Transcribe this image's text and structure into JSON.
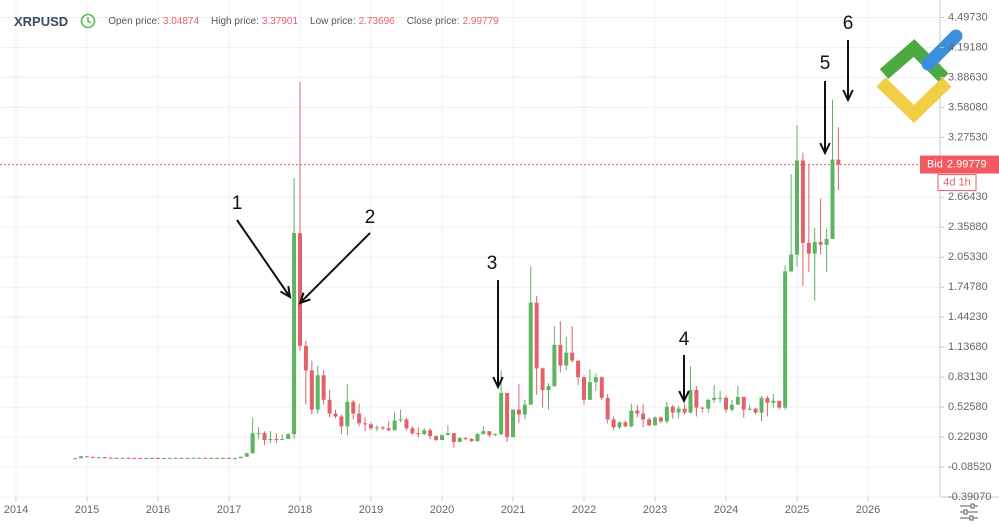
{
  "header": {
    "symbol": "XRPUSD",
    "fields": [
      "Open price:",
      "High price:",
      "Low price:",
      "Close price:"
    ]
  },
  "chart_data": {
    "type": "candlestick",
    "x": [
      2014.833,
      2014.917,
      2015.0,
      2015.083,
      2015.167,
      2015.25,
      2015.333,
      2015.417,
      2015.5,
      2015.583,
      2015.667,
      2015.75,
      2015.833,
      2015.917,
      2016.0,
      2016.083,
      2016.167,
      2016.25,
      2016.333,
      2016.417,
      2016.5,
      2016.583,
      2016.667,
      2016.75,
      2016.833,
      2016.917,
      2017.0,
      2017.083,
      2017.167,
      2017.25,
      2017.333,
      2017.417,
      2017.5,
      2017.583,
      2017.667,
      2017.75,
      2017.833,
      2017.917,
      2018.0,
      2018.083,
      2018.167,
      2018.25,
      2018.333,
      2018.417,
      2018.5,
      2018.583,
      2018.667,
      2018.75,
      2018.833,
      2018.917,
      2019.0,
      2019.083,
      2019.167,
      2019.25,
      2019.333,
      2019.417,
      2019.5,
      2019.583,
      2019.667,
      2019.75,
      2019.833,
      2019.917,
      2020.0,
      2020.083,
      2020.167,
      2020.25,
      2020.333,
      2020.417,
      2020.5,
      2020.583,
      2020.667,
      2020.75,
      2020.833,
      2020.917,
      2021.0,
      2021.083,
      2021.167,
      2021.25,
      2021.333,
      2021.417,
      2021.5,
      2021.583,
      2021.667,
      2021.75,
      2021.833,
      2021.917,
      2022.0,
      2022.083,
      2022.167,
      2022.25,
      2022.333,
      2022.417,
      2022.5,
      2022.583,
      2022.667,
      2022.75,
      2022.833,
      2022.917,
      2023.0,
      2023.083,
      2023.167,
      2023.25,
      2023.333,
      2023.417,
      2023.5,
      2023.583,
      2023.667,
      2023.75,
      2023.833,
      2023.917,
      2024.0,
      2024.083,
      2024.167,
      2024.25,
      2024.333,
      2024.417,
      2024.5,
      2024.583,
      2024.667,
      2024.75,
      2024.833,
      2024.917,
      2025.0,
      2025.083,
      2025.167,
      2025.25,
      2025.333,
      2025.417,
      2025.5,
      2025.583
    ],
    "open": [
      0.005,
      0.005,
      0.024,
      0.018,
      0.013,
      0.015,
      0.011,
      0.009,
      0.008,
      0.009,
      0.008,
      0.007,
      0.006,
      0.006,
      0.007,
      0.006,
      0.006,
      0.006,
      0.008,
      0.006,
      0.007,
      0.009,
      0.009,
      0.006,
      0.007,
      0.007,
      0.008,
      0.006,
      0.006,
      0.02,
      0.055,
      0.26,
      0.26,
      0.19,
      0.2,
      0.19,
      0.2,
      0.25,
      2.3,
      1.15,
      0.9,
      0.5,
      0.85,
      0.6,
      0.46,
      0.43,
      0.33,
      0.58,
      0.46,
      0.36,
      0.35,
      0.31,
      0.32,
      0.31,
      0.29,
      0.39,
      0.4,
      0.31,
      0.26,
      0.25,
      0.29,
      0.23,
      0.19,
      0.24,
      0.26,
      0.17,
      0.21,
      0.2,
      0.18,
      0.25,
      0.28,
      0.24,
      0.25,
      0.67,
      0.22,
      0.5,
      0.45,
      0.55,
      1.59,
      0.92,
      0.7,
      0.74,
      1.16,
      0.95,
      1.08,
      1.0,
      0.83,
      0.6,
      0.78,
      0.83,
      0.62,
      0.4,
      0.32,
      0.37,
      0.33,
      0.49,
      0.46,
      0.4,
      0.34,
      0.42,
      0.38,
      0.53,
      0.47,
      0.51,
      0.47,
      0.7,
      0.52,
      0.51,
      0.6,
      0.62,
      0.62,
      0.5,
      0.55,
      0.63,
      0.5,
      0.51,
      0.47,
      0.62,
      0.57,
      0.59,
      0.52,
      1.91,
      2.08,
      3.04,
      2.2,
      2.09,
      2.21,
      2.18,
      2.24,
      3.04874
    ],
    "high": [
      0.009,
      0.028,
      0.028,
      0.022,
      0.019,
      0.019,
      0.015,
      0.013,
      0.013,
      0.013,
      0.012,
      0.011,
      0.01,
      0.011,
      0.011,
      0.01,
      0.01,
      0.012,
      0.012,
      0.011,
      0.013,
      0.013,
      0.013,
      0.011,
      0.011,
      0.012,
      0.012,
      0.01,
      0.02,
      0.06,
      0.42,
      0.32,
      0.28,
      0.28,
      0.26,
      0.25,
      0.26,
      2.86,
      3.84,
      1.2,
      1.0,
      0.95,
      0.9,
      0.7,
      0.5,
      0.45,
      0.76,
      0.6,
      0.56,
      0.42,
      0.37,
      0.34,
      0.33,
      0.38,
      0.48,
      0.5,
      0.42,
      0.33,
      0.32,
      0.31,
      0.31,
      0.24,
      0.25,
      0.34,
      0.26,
      0.22,
      0.22,
      0.21,
      0.26,
      0.33,
      0.28,
      0.26,
      0.9,
      0.67,
      0.5,
      0.76,
      0.6,
      1.96,
      1.66,
      0.93,
      0.77,
      1.35,
      1.4,
      1.24,
      1.35,
      1.0,
      0.85,
      0.91,
      0.87,
      0.84,
      0.66,
      0.43,
      0.38,
      0.39,
      0.56,
      0.55,
      0.56,
      0.42,
      0.43,
      0.43,
      0.58,
      0.55,
      0.54,
      0.56,
      0.94,
      0.74,
      0.53,
      0.61,
      0.75,
      0.69,
      0.64,
      0.6,
      0.74,
      0.63,
      0.55,
      0.52,
      0.64,
      0.64,
      0.66,
      0.59,
      1.97,
      2.9,
      3.4,
      3.12,
      3.0,
      2.35,
      2.65,
      2.34,
      3.66,
      3.37901
    ],
    "low": [
      0.003,
      0.003,
      0.016,
      0.011,
      0.011,
      0.009,
      0.007,
      0.006,
      0.006,
      0.006,
      0.005,
      0.004,
      0.004,
      0.004,
      0.004,
      0.004,
      0.004,
      0.004,
      0.004,
      0.004,
      0.005,
      0.007,
      0.004,
      0.004,
      0.005,
      0.005,
      0.004,
      0.004,
      0.006,
      0.02,
      0.05,
      0.2,
      0.14,
      0.16,
      0.16,
      0.19,
      0.2,
      0.2,
      1.1,
      0.55,
      0.45,
      0.46,
      0.55,
      0.42,
      0.41,
      0.25,
      0.24,
      0.4,
      0.33,
      0.28,
      0.29,
      0.28,
      0.29,
      0.28,
      0.29,
      0.37,
      0.29,
      0.24,
      0.22,
      0.24,
      0.2,
      0.18,
      0.19,
      0.24,
      0.11,
      0.17,
      0.19,
      0.17,
      0.17,
      0.25,
      0.22,
      0.23,
      0.24,
      0.17,
      0.22,
      0.36,
      0.4,
      0.55,
      0.65,
      0.52,
      0.5,
      0.73,
      0.88,
      0.9,
      0.98,
      0.75,
      0.55,
      0.6,
      0.69,
      0.6,
      0.36,
      0.29,
      0.3,
      0.32,
      0.32,
      0.42,
      0.32,
      0.33,
      0.34,
      0.36,
      0.36,
      0.41,
      0.41,
      0.45,
      0.46,
      0.43,
      0.47,
      0.47,
      0.57,
      0.57,
      0.47,
      0.48,
      0.55,
      0.42,
      0.49,
      0.45,
      0.38,
      0.43,
      0.52,
      0.5,
      0.5,
      1.9,
      1.96,
      1.76,
      1.9,
      1.61,
      2.08,
      1.9,
      2.24,
      2.73696
    ],
    "close": [
      0.005,
      0.024,
      0.018,
      0.013,
      0.015,
      0.011,
      0.009,
      0.008,
      0.009,
      0.008,
      0.007,
      0.006,
      0.006,
      0.007,
      0.006,
      0.006,
      0.006,
      0.008,
      0.006,
      0.007,
      0.009,
      0.009,
      0.006,
      0.007,
      0.007,
      0.008,
      0.006,
      0.006,
      0.02,
      0.055,
      0.26,
      0.26,
      0.19,
      0.2,
      0.19,
      0.2,
      0.25,
      2.3,
      1.15,
      0.9,
      0.5,
      0.85,
      0.6,
      0.46,
      0.43,
      0.33,
      0.58,
      0.46,
      0.36,
      0.35,
      0.31,
      0.32,
      0.31,
      0.29,
      0.39,
      0.4,
      0.31,
      0.26,
      0.25,
      0.29,
      0.23,
      0.19,
      0.24,
      0.26,
      0.17,
      0.21,
      0.2,
      0.18,
      0.25,
      0.28,
      0.24,
      0.25,
      0.67,
      0.22,
      0.5,
      0.45,
      0.55,
      1.59,
      0.92,
      0.7,
      0.74,
      1.16,
      0.95,
      1.08,
      1.0,
      0.83,
      0.6,
      0.78,
      0.83,
      0.62,
      0.4,
      0.32,
      0.37,
      0.33,
      0.49,
      0.46,
      0.4,
      0.34,
      0.42,
      0.38,
      0.53,
      0.47,
      0.51,
      0.47,
      0.7,
      0.52,
      0.51,
      0.6,
      0.62,
      0.62,
      0.5,
      0.55,
      0.63,
      0.5,
      0.51,
      0.47,
      0.62,
      0.57,
      0.59,
      0.52,
      1.91,
      2.08,
      3.04,
      2.2,
      2.09,
      2.21,
      2.18,
      2.24,
      3.04874,
      2.99779
    ],
    "up_color": "#5db461",
    "down_color": "#e3616a",
    "xlim": [
      2013.775,
      2027.014
    ],
    "xticks": [
      2014,
      2015,
      2016,
      2017,
      2018,
      2019,
      2020,
      2021,
      2022,
      2023,
      2024,
      2025,
      2026
    ],
    "ylim": [
      -0.3907,
      4.6755
    ],
    "yticks": [
      {
        "value": 4.4973,
        "label": "4.49730"
      },
      {
        "value": 4.1918,
        "label": "4.19180"
      },
      {
        "value": 3.8863,
        "label": "3.88630"
      },
      {
        "value": 3.5808,
        "label": "3.58080"
      },
      {
        "value": 3.2753,
        "label": "3.27530"
      },
      {
        "value": 2.6643,
        "label": "2.66430"
      },
      {
        "value": 2.3588,
        "label": "2.35880"
      },
      {
        "value": 2.0533,
        "label": "2.05330"
      },
      {
        "value": 1.7478,
        "label": "1.74780"
      },
      {
        "value": 1.4423,
        "label": "1.44230"
      },
      {
        "value": 1.1368,
        "label": "1.13680"
      },
      {
        "value": 0.8313,
        "label": "0.83130"
      },
      {
        "value": 0.5258,
        "label": "0.52580"
      },
      {
        "value": 0.2203,
        "label": "0.22030"
      },
      {
        "value": -0.0852,
        "label": "-0.08520"
      },
      {
        "value": -0.3907,
        "label": "-0.39070"
      }
    ],
    "grid": true,
    "price_label": "Bid",
    "countdown": "4d 1h",
    "annotations": [
      "1",
      "2",
      "3",
      "4",
      "5",
      "6"
    ]
  }
}
